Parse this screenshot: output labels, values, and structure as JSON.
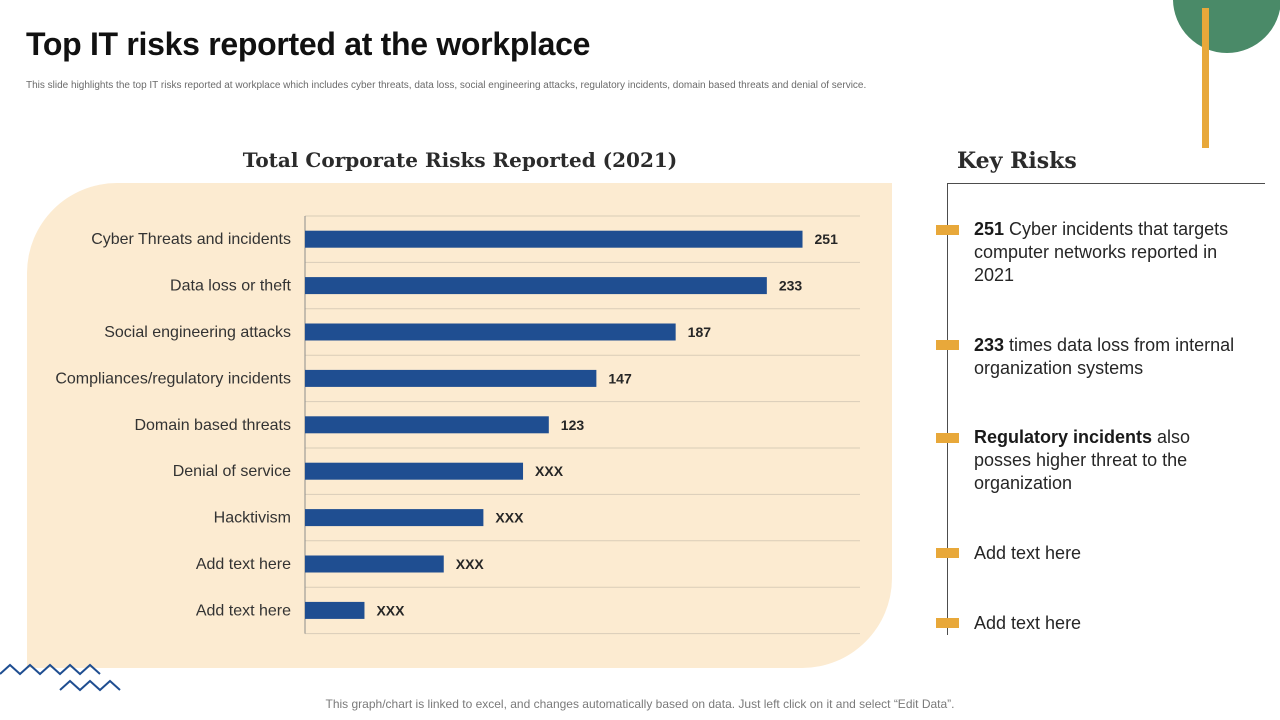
{
  "slide": {
    "title": "Top IT risks reported at the workplace",
    "subtitle": "This slide highlights the top IT  risks reported at workplace which includes cyber threats, data loss, social engineering attacks, regulatory incidents, domain based threats and denial of service.",
    "footer": "This graph/chart is linked to excel, and changes automatically based on data. Just left click on it and select “Edit Data”."
  },
  "chart_data": {
    "type": "bar",
    "orientation": "horizontal",
    "title": "Total Corporate Risks Reported (2021)",
    "categories": [
      "Cyber Threats and incidents",
      "Data loss or theft",
      "Social engineering attacks",
      "Compliances/regulatory incidents",
      "Domain based threats",
      "Denial of service",
      "Hacktivism",
      "Add text here",
      "Add text here"
    ],
    "values": [
      251,
      233,
      187,
      147,
      123,
      110,
      90,
      70,
      30
    ],
    "data_labels": [
      "251",
      "233",
      "187",
      "147",
      "123",
      "XXX",
      "XXX",
      "XXX",
      "XXX"
    ],
    "xlim": [
      0,
      280
    ],
    "grid": true,
    "xlabel": "",
    "ylabel": "",
    "colors": {
      "bar": "#1f4e91",
      "grid": "#d9cdb8",
      "axis": "#8c8c8c"
    }
  },
  "key_risks": {
    "title": "Key Risks",
    "items": [
      {
        "bold": "251",
        "text": " Cyber incidents that targets computer networks reported in 2021"
      },
      {
        "bold": "233",
        "text": " times data loss from internal organization systems"
      },
      {
        "bold": "Regulatory incidents",
        "text": " also posses higher threat to the organization"
      },
      {
        "bold": "",
        "text": "Add text here"
      },
      {
        "bold": "",
        "text": "Add text here"
      }
    ]
  },
  "theme": {
    "accent_green": "#4a8a68",
    "accent_orange": "#e8a83a",
    "panel_bg": "#fcebd1",
    "zigzag_blue": "#1f4e91"
  }
}
